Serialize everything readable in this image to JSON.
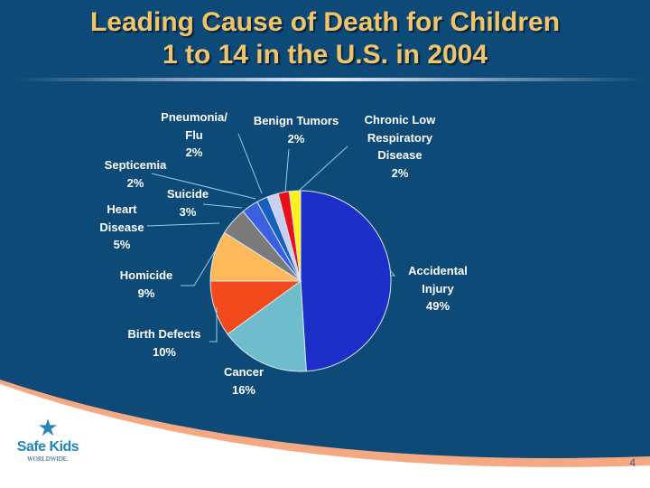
{
  "slide": {
    "title_line1": "Leading Cause of Death for Children",
    "title_line2": "1 to 14 in the U.S. in 2004",
    "page_number": "4",
    "logo": {
      "name": "Safe Kids",
      "sub": "WORLDWIDE."
    },
    "colors": {
      "background": "#0d4a77",
      "title": "#f2c46a",
      "curve_accent": "#f4a982"
    }
  },
  "chart_data": {
    "type": "pie",
    "start": "top",
    "direction": "clockwise",
    "slices": [
      {
        "label": "Accidental Injury",
        "value": 49,
        "text": "49%",
        "color": "#1c2fc8"
      },
      {
        "label": "Cancer",
        "value": 16,
        "text": "16%",
        "color": "#6fbdcc"
      },
      {
        "label": "Birth Defects",
        "value": 10,
        "text": "10%",
        "color": "#f24a1c"
      },
      {
        "label": "Homicide",
        "value": 9,
        "text": "9%",
        "color": "#fdb95a"
      },
      {
        "label": "Heart Disease",
        "value": 5,
        "text": "5%",
        "color": "#7a7a7a"
      },
      {
        "label": "Suicide",
        "value": 3,
        "text": "3%",
        "color": "#3a5fe0"
      },
      {
        "label": "Septicemia",
        "value": 2,
        "text": "2%",
        "color": "#1560c0"
      },
      {
        "label": "Pneumonia/ Flu",
        "value": 2,
        "text": "2%",
        "color": "#c8cff0"
      },
      {
        "label": "Benign Tumors",
        "value": 2,
        "text": "2%",
        "color": "#e8101a"
      },
      {
        "label": "Chronic Low Respiratory Disease",
        "value": 2,
        "text": "2%",
        "color": "#fff21a"
      }
    ]
  }
}
